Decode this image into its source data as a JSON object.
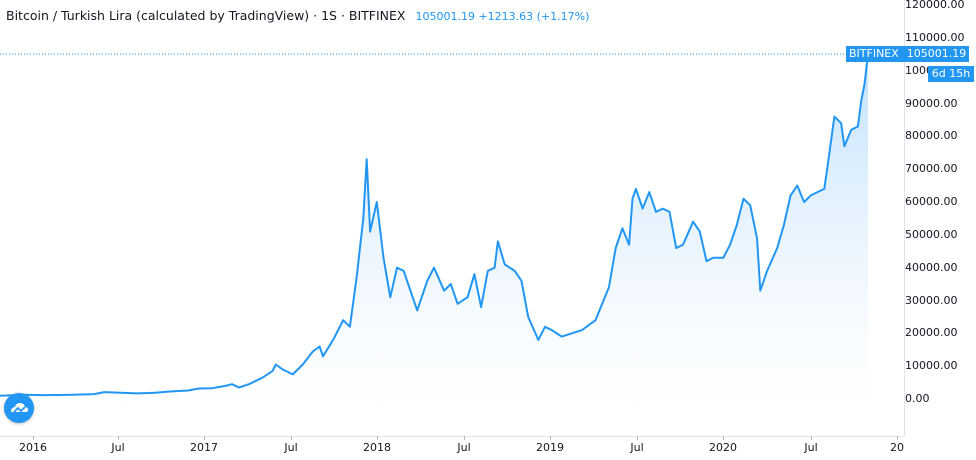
{
  "header": {
    "title": "Bitcoin / Turkish Lira (calculated by TradingView) · 1S · BITFINEX",
    "price_text": "105001.19 +1213.63 (+1.17%)"
  },
  "price_label": {
    "exchange": "BITFINEX",
    "price": "105001.19",
    "countdown": "6d 15h"
  },
  "colors": {
    "line": "#2196f3",
    "fill_top": "#bbdefb",
    "fill_bottom": "#ffffff",
    "accent": "#2196f3"
  },
  "icons": {
    "logo": "tradingview-cloud-logo-icon"
  },
  "chart_data": {
    "type": "area",
    "title": "Bitcoin / Turkish Lira (calculated by TradingView)",
    "interval": "1S",
    "exchange": "BITFINEX",
    "ylim": [
      0,
      120000
    ],
    "y_ticks": [
      "120000.00",
      "110000.00",
      "100000.00",
      "90000.00",
      "80000.00",
      "70000.00",
      "60000.00",
      "50000.00",
      "40000.00",
      "30000.00",
      "20000.00",
      "10000.00",
      "0.00"
    ],
    "x_ticks": [
      "2016",
      "Jul",
      "2017",
      "Jul",
      "2018",
      "Jul",
      "2019",
      "Jul",
      "2020",
      "Jul",
      "20"
    ],
    "grid": false,
    "series": [
      {
        "points": [
          [
            "2015-11-16",
            1000
          ],
          [
            "2016-01-04",
            1300
          ],
          [
            "2016-02-15",
            1200
          ],
          [
            "2016-04-04",
            1250
          ],
          [
            "2016-05-30",
            1500
          ],
          [
            "2016-06-20",
            2100
          ],
          [
            "2016-07-25",
            1900
          ],
          [
            "2016-08-29",
            1700
          ],
          [
            "2016-10-03",
            1900
          ],
          [
            "2016-11-07",
            2300
          ],
          [
            "2016-12-12",
            2600
          ],
          [
            "2017-01-02",
            3200
          ],
          [
            "2017-01-30",
            3300
          ],
          [
            "2017-02-27",
            4000
          ],
          [
            "2017-03-13",
            4500
          ],
          [
            "2017-03-27",
            3500
          ],
          [
            "2017-04-17",
            4500
          ],
          [
            "2017-05-15",
            6500
          ],
          [
            "2017-06-05",
            8500
          ],
          [
            "2017-06-12",
            10500
          ],
          [
            "2017-06-26",
            9000
          ],
          [
            "2017-07-17",
            7500
          ],
          [
            "2017-08-07",
            10500
          ],
          [
            "2017-08-28",
            14500
          ],
          [
            "2017-09-11",
            16000
          ],
          [
            "2017-09-18",
            13000
          ],
          [
            "2017-10-09",
            18000
          ],
          [
            "2017-10-30",
            24000
          ],
          [
            "2017-11-13",
            22000
          ],
          [
            "2017-11-27",
            37000
          ],
          [
            "2017-12-11",
            55000
          ],
          [
            "2017-12-18",
            73000
          ],
          [
            "2017-12-25",
            51000
          ],
          [
            "2018-01-08",
            60000
          ],
          [
            "2018-01-22",
            43000
          ],
          [
            "2018-02-05",
            31000
          ],
          [
            "2018-02-19",
            40000
          ],
          [
            "2018-03-05",
            39000
          ],
          [
            "2018-03-19",
            33000
          ],
          [
            "2018-04-02",
            27000
          ],
          [
            "2018-04-23",
            36000
          ],
          [
            "2018-05-07",
            40000
          ],
          [
            "2018-05-28",
            33000
          ],
          [
            "2018-06-11",
            35000
          ],
          [
            "2018-06-25",
            29000
          ],
          [
            "2018-07-16",
            31000
          ],
          [
            "2018-07-30",
            38000
          ],
          [
            "2018-08-13",
            28000
          ],
          [
            "2018-08-27",
            39000
          ],
          [
            "2018-09-10",
            40000
          ],
          [
            "2018-09-17",
            48000
          ],
          [
            "2018-10-01",
            41000
          ],
          [
            "2018-10-22",
            39000
          ],
          [
            "2018-11-05",
            36000
          ],
          [
            "2018-11-19",
            25000
          ],
          [
            "2018-12-10",
            18000
          ],
          [
            "2018-12-24",
            22000
          ],
          [
            "2019-01-07",
            21000
          ],
          [
            "2019-01-28",
            19000
          ],
          [
            "2019-02-18",
            20000
          ],
          [
            "2019-03-11",
            21000
          ],
          [
            "2019-04-08",
            24000
          ],
          [
            "2019-04-22",
            29000
          ],
          [
            "2019-05-06",
            34000
          ],
          [
            "2019-05-20",
            46000
          ],
          [
            "2019-06-03",
            52000
          ],
          [
            "2019-06-17",
            47000
          ],
          [
            "2019-06-24",
            61000
          ],
          [
            "2019-07-01",
            64000
          ],
          [
            "2019-07-15",
            58000
          ],
          [
            "2019-07-29",
            63000
          ],
          [
            "2019-08-12",
            57000
          ],
          [
            "2019-08-26",
            58000
          ],
          [
            "2019-09-09",
            57000
          ],
          [
            "2019-09-23",
            46000
          ],
          [
            "2019-10-07",
            47000
          ],
          [
            "2019-10-28",
            54000
          ],
          [
            "2019-11-11",
            51000
          ],
          [
            "2019-11-25",
            42000
          ],
          [
            "2019-12-09",
            43000
          ],
          [
            "2019-12-30",
            43000
          ],
          [
            "2020-01-13",
            47000
          ],
          [
            "2020-01-27",
            53000
          ],
          [
            "2020-02-10",
            61000
          ],
          [
            "2020-02-24",
            59000
          ],
          [
            "2020-03-09",
            49000
          ],
          [
            "2020-03-16",
            33000
          ],
          [
            "2020-03-30",
            39000
          ],
          [
            "2020-04-20",
            46000
          ],
          [
            "2020-05-04",
            53000
          ],
          [
            "2020-05-18",
            62000
          ],
          [
            "2020-06-01",
            65000
          ],
          [
            "2020-06-15",
            60000
          ],
          [
            "2020-06-29",
            62000
          ],
          [
            "2020-07-13",
            63000
          ],
          [
            "2020-07-27",
            64000
          ],
          [
            "2020-08-03",
            71000
          ],
          [
            "2020-08-17",
            86000
          ],
          [
            "2020-08-31",
            84000
          ],
          [
            "2020-09-07",
            77000
          ],
          [
            "2020-09-21",
            82000
          ],
          [
            "2020-10-05",
            83000
          ],
          [
            "2020-10-12",
            91000
          ],
          [
            "2020-10-19",
            96000
          ],
          [
            "2020-10-26",
            105001
          ]
        ]
      }
    ]
  }
}
